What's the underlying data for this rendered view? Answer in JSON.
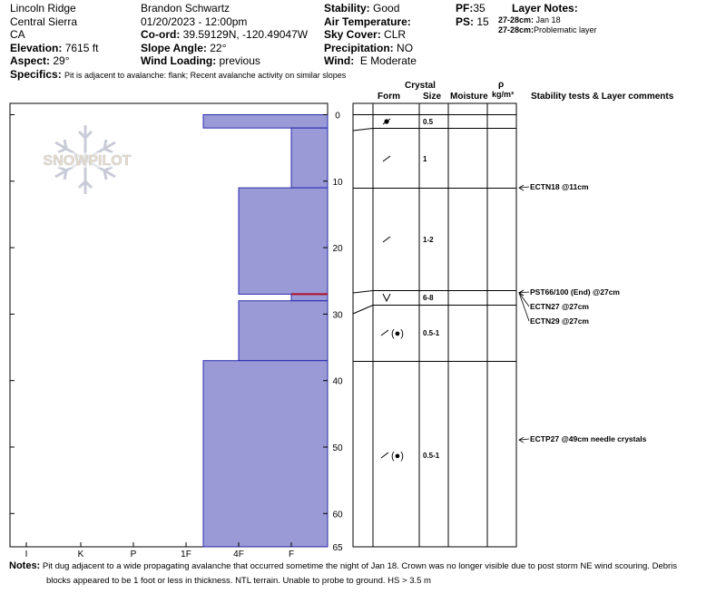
{
  "header": {
    "location": {
      "name": "Lincoln Ridge",
      "range": "Central Sierra",
      "state": "CA"
    },
    "elevation": {
      "label": "Elevation:",
      "value": "7615 ft"
    },
    "aspect": {
      "label": "Aspect:",
      "value": "29°"
    },
    "observer": "Brandon Schwartz",
    "datetime": "01/20/2023 - 12:00pm",
    "coord": {
      "label": "Co-ord:",
      "value": "39.59129N, -120.49047W"
    },
    "slope": {
      "label": "Slope Angle:",
      "value": "22°"
    },
    "wind_loading": {
      "label": "Wind Loading:",
      "value": "previous"
    },
    "stability": {
      "label": "Stability:",
      "value": "Good"
    },
    "air_temp": {
      "label": "Air Temperature:",
      "value": ""
    },
    "sky": {
      "label": "Sky Cover:",
      "value": "CLR"
    },
    "precip": {
      "label": "Precipitation:",
      "value": "NO"
    },
    "wind": {
      "label": "Wind:",
      "value": "E Moderate"
    },
    "pf": {
      "label": "PF:",
      "value": "35"
    },
    "ps": {
      "label": "PS:",
      "value": "15"
    },
    "layer_notes": {
      "title": "Layer Notes:",
      "items": [
        {
          "range": "27-28cm:",
          "text": "Jan 18"
        },
        {
          "range": "27-28cm:",
          "text": "Problematic layer"
        }
      ]
    },
    "specifics": {
      "label": "Specifics:",
      "value": "Pit is adjacent to avalanche: flank; Recent avalanche activity on similar slopes"
    }
  },
  "columns": {
    "crystal": "Crystal",
    "form": "Form",
    "size": "Size",
    "moisture": "Moisture",
    "rho": "ρ",
    "density_unit": "kg/m³",
    "comments": "Stability tests & Layer comments"
  },
  "logo_text": "SNOWPILOT",
  "hardness_axis": [
    "I",
    "K",
    "P",
    "1F",
    "4F",
    "F"
  ],
  "depth_ticks": [
    0,
    10,
    20,
    30,
    40,
    50,
    60,
    65
  ],
  "hardness_profile": [
    {
      "top": 0,
      "bottom": 2,
      "hardness": "1F+"
    },
    {
      "top": 2,
      "bottom": 11,
      "hardness": "F+"
    },
    {
      "top": 11,
      "bottom": 27,
      "hardness": "4F"
    },
    {
      "top": 27,
      "bottom": 28,
      "hardness": "F+"
    },
    {
      "top": 28,
      "bottom": 37,
      "hardness": "4F"
    },
    {
      "top": 37,
      "bottom": 65,
      "hardness": "1F+"
    }
  ],
  "crystal_layers": [
    {
      "depth": 1,
      "form": "melt-freeze",
      "size": "0.5"
    },
    {
      "depth": 6.5,
      "form": "decomposing",
      "size": "1"
    },
    {
      "depth": 19,
      "form": "decomposing",
      "size": "1-2"
    },
    {
      "depth": 27.5,
      "form": "surface-hoar",
      "size": "6-8"
    },
    {
      "depth": 33,
      "form": "decomposing-rounded",
      "size": "0.5-1"
    },
    {
      "depth": 51,
      "form": "decomposing-rounded",
      "size": "0.5-1"
    }
  ],
  "stability_tests": [
    {
      "depth": 11,
      "text": "ECTN18 @11cm"
    },
    {
      "depth": 27,
      "text": "PST66/100 (End) @27cm"
    },
    {
      "depth": 27,
      "text": "ECTN27 @27cm"
    },
    {
      "depth": 27,
      "text": "ECTN29 @27cm"
    },
    {
      "depth": 49,
      "text": "ECTP27 @49cm needle crystals"
    }
  ],
  "notes": {
    "label": "Notes:",
    "line1": "Pit dug adjacent to a wide propagating avalanche that occurred sometime the night of Jan 18. Crown was no longer visible due to post storm NE wind scouring. Debris",
    "line2": "blocks appeared to be 1 foot or less in thickness. NTL terrain. Unable to probe to ground. HS > 3.5 m"
  },
  "colors": {
    "bar_fill": "#9a9ad6",
    "bar_stroke": "#2a2ab0",
    "weak_layer": "#b0102a",
    "logo": "#c9ccd8"
  }
}
